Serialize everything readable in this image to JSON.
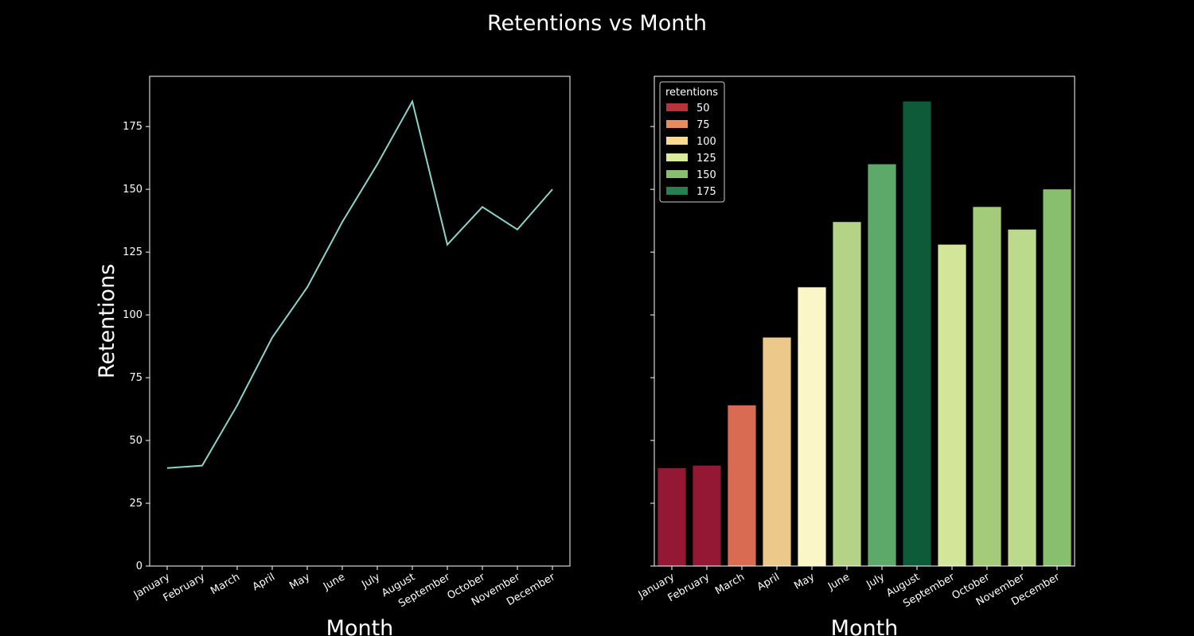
{
  "figure": {
    "title": "Retentions vs Month",
    "background": "#000000",
    "foreground": "#ffffff"
  },
  "chart_data": [
    {
      "type": "line",
      "categories": [
        "January",
        "February",
        "March",
        "April",
        "May",
        "June",
        "July",
        "August",
        "September",
        "October",
        "November",
        "December"
      ],
      "values": [
        39,
        40,
        64,
        91,
        111,
        137,
        160,
        185,
        128,
        143,
        134,
        150
      ],
      "xlabel": "Month",
      "ylabel": "Retentions",
      "ylim": [
        0,
        195
      ],
      "yticks": [
        0,
        25,
        50,
        75,
        100,
        125,
        150,
        175
      ],
      "line_color": "#8dd3c7",
      "grid": false
    },
    {
      "type": "bar",
      "categories": [
        "January",
        "February",
        "March",
        "April",
        "May",
        "June",
        "July",
        "August",
        "September",
        "October",
        "November",
        "December"
      ],
      "values": [
        39,
        40,
        64,
        91,
        111,
        137,
        160,
        185,
        128,
        143,
        134,
        150
      ],
      "bar_colors": [
        "#941834",
        "#941834",
        "#d86b51",
        "#ecc88b",
        "#faf6c8",
        "#b4d386",
        "#5ca96a",
        "#0d5b38",
        "#d2e598",
        "#a3cb79",
        "#bcda8b",
        "#87bf6f"
      ],
      "xlabel": "Month",
      "ylim": [
        0,
        195
      ],
      "grid": false,
      "legend": {
        "title": "retentions",
        "placement": "top-left",
        "entries": [
          {
            "label": "50",
            "color": "#b53339"
          },
          {
            "label": "75",
            "color": "#ea8b5d"
          },
          {
            "label": "100",
            "color": "#fbdb93"
          },
          {
            "label": "125",
            "color": "#d8ec9a"
          },
          {
            "label": "150",
            "color": "#87bf6f"
          },
          {
            "label": "175",
            "color": "#277e4e"
          }
        ]
      }
    }
  ]
}
